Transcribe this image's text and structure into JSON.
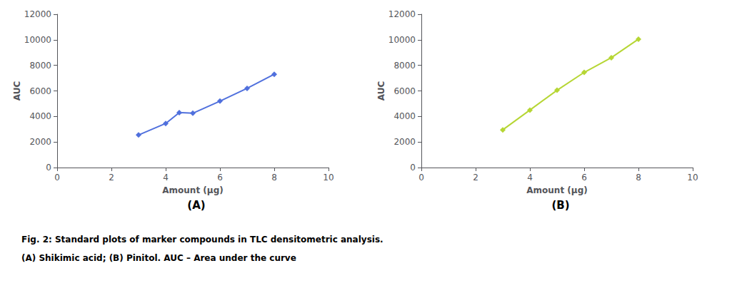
{
  "chart_data": [
    {
      "type": "line",
      "title": "(A)",
      "x": [
        3,
        4,
        4.5,
        5,
        6,
        7,
        8
      ],
      "values": [
        2550,
        3450,
        4300,
        4250,
        5200,
        6200,
        7300
      ],
      "xlabel": "Amount (μg)",
      "ylabel": "AUC",
      "xlim": [
        0,
        10
      ],
      "ylim": [
        0,
        12000
      ],
      "xticks": [
        0,
        2,
        4,
        6,
        8,
        10
      ],
      "yticks": [
        0,
        2000,
        4000,
        6000,
        8000,
        10000,
        12000
      ],
      "marker": "diamond",
      "grid": false
    },
    {
      "type": "line",
      "title": "(B)",
      "x": [
        3,
        4,
        5,
        6,
        7,
        8
      ],
      "values": [
        2950,
        4500,
        6050,
        7450,
        8600,
        10050
      ],
      "xlabel": "Amount (μg)",
      "ylabel": "AUC",
      "xlim": [
        0,
        10
      ],
      "ylim": [
        0,
        12000
      ],
      "xticks": [
        0,
        2,
        4,
        6,
        8,
        10
      ],
      "yticks": [
        0,
        2000,
        4000,
        6000,
        8000,
        10000,
        12000
      ],
      "marker": "diamond",
      "grid": false
    }
  ],
  "annotations": [
    "Fig. 2: Standard plots of marker compounds in TLC densitometric analysis.",
    "(A) Shikimic acid; (B) Pinitol. AUC – Area under the curve"
  ]
}
